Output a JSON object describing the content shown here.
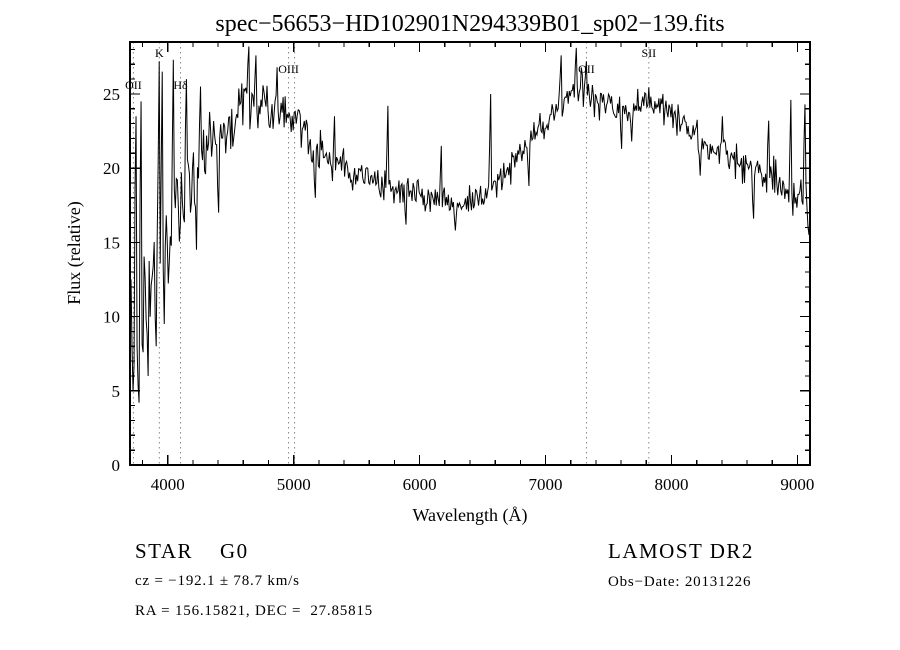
{
  "title": "spec−56653−HD102901N294339B01_sp02−139.fits",
  "footer": {
    "class_label": "STAR    G0",
    "survey": "LAMOST DR2",
    "cz": "cz = −192.1 ± 78.7 km/s",
    "obs_date": "Obs−Date: 20131226",
    "radec": "RA = 156.15821, DEC =  27.85815"
  },
  "chart_data": {
    "type": "line",
    "title": "spec−56653−HD102901N294339B01_sp02−139.fits",
    "xlabel": "Wavelength (Å)",
    "ylabel": "Flux (relative)",
    "xlim": [
      3700,
      9100
    ],
    "ylim": [
      0,
      28.5
    ],
    "xticks": [
      4000,
      5000,
      6000,
      7000,
      8000,
      9000
    ],
    "yticks": [
      0,
      5,
      10,
      15,
      20,
      25
    ],
    "x_minor_step": 200,
    "y_minor_step": 1,
    "grid": false,
    "legend": "none",
    "line_color": "#000000",
    "marker_line_color": "#888888",
    "spectral_lines": [
      {
        "label": "OII",
        "wavelength": 3727,
        "row": 2
      },
      {
        "label": "K",
        "wavelength": 3933,
        "row": 0
      },
      {
        "label": "Hδ",
        "wavelength": 4101,
        "row": 2
      },
      {
        "label": "OIII",
        "wavelength": 4959,
        "row": 1
      },
      {
        "label": "",
        "wavelength": 5007,
        "row": 1
      },
      {
        "label": "OII",
        "wavelength": 7325,
        "row": 1
      },
      {
        "label": "SII",
        "wavelength": 7820,
        "row": 0
      }
    ],
    "series": [
      {
        "name": "flux",
        "x_start": 3700,
        "x_step": 50,
        "y": [
          11.5,
          11,
          12,
          12.5,
          13.5,
          15,
          16,
          17.5,
          18.5,
          19,
          19.5,
          20.5,
          21,
          21.5,
          22,
          22.5,
          23,
          23.5,
          24.5,
          24.5,
          24,
          24.5,
          23.5,
          23.5,
          24,
          23.5,
          23,
          22.5,
          22,
          21.5,
          21.2,
          20.8,
          20.5,
          20.2,
          20,
          19.8,
          19.5,
          19.3,
          19.2,
          19,
          18.8,
          19,
          18.8,
          18.6,
          18.5,
          18.3,
          18.2,
          18,
          17.9,
          17.8,
          17.7,
          17.6,
          17.6,
          17.7,
          17.8,
          18,
          18.2,
          18.5,
          18.9,
          19.3,
          19.8,
          20.3,
          20.8,
          21.3,
          21.9,
          22.4,
          22.9,
          23.5,
          24.2,
          24.8,
          25.3,
          25.5,
          25.4,
          25,
          24.4,
          23.9,
          24,
          24.1,
          23.6,
          23.9,
          24.3,
          24.5,
          24.6,
          24.4,
          24.2,
          23.9,
          23.5,
          23.1,
          22.8,
          22.4,
          22.1,
          21.8,
          21.5,
          21.2,
          20.9,
          20.7,
          20.5,
          20.2,
          20,
          19.9,
          19.9,
          19.6,
          19.4,
          19,
          18.7,
          18.5,
          18.3,
          19,
          17.5
        ]
      }
    ],
    "noise_profile": [
      [
        3700,
        6
      ],
      [
        3900,
        5.5
      ],
      [
        4050,
        4.5
      ],
      [
        4200,
        2.8
      ],
      [
        4500,
        2.3
      ],
      [
        5000,
        1.8
      ],
      [
        5500,
        1.4
      ],
      [
        6000,
        1.1
      ],
      [
        6500,
        1.1
      ],
      [
        7000,
        1.3
      ],
      [
        7300,
        1.6
      ],
      [
        7600,
        1.4
      ],
      [
        8000,
        1.3
      ],
      [
        8500,
        1.4
      ],
      [
        8900,
        1.7
      ],
      [
        9100,
        2.2
      ]
    ],
    "spikes": [
      [
        3750,
        23.5
      ],
      [
        3788,
        24.5
      ],
      [
        3935,
        27.2
      ],
      [
        3952,
        26.5
      ],
      [
        4047,
        27.3
      ],
      [
        4150,
        26
      ],
      [
        4260,
        25.5
      ],
      [
        4640,
        28.2
      ],
      [
        4700,
        27.6
      ],
      [
        4870,
        26.8
      ],
      [
        5320,
        23.5
      ],
      [
        5750,
        24.2
      ],
      [
        6170,
        21.5
      ],
      [
        6560,
        25.0
      ],
      [
        7120,
        27.6
      ],
      [
        7240,
        28.1
      ],
      [
        7320,
        27.2
      ],
      [
        8400,
        23.5
      ],
      [
        8770,
        23.2
      ],
      [
        8950,
        24.6
      ],
      [
        9060,
        24.3
      ]
    ],
    "dips": [
      [
        3725,
        5
      ],
      [
        3770,
        4.2
      ],
      [
        3840,
        6
      ],
      [
        3910,
        8
      ],
      [
        3970,
        9.5
      ],
      [
        4226,
        14.5
      ],
      [
        4400,
        17
      ],
      [
        5170,
        18
      ],
      [
        5890,
        16.2
      ],
      [
        6280,
        15.8
      ],
      [
        6870,
        18.8
      ],
      [
        7600,
        21.3
      ],
      [
        7680,
        21.8
      ],
      [
        8230,
        19.5
      ],
      [
        8650,
        16.6
      ],
      [
        9095,
        15.5
      ]
    ]
  }
}
